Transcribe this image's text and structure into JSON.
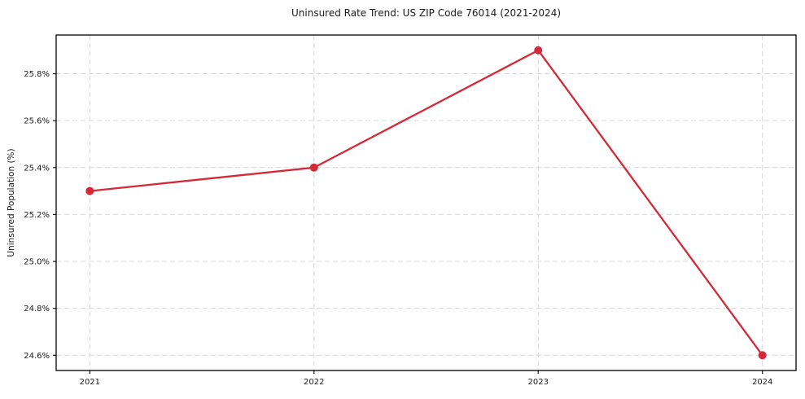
{
  "figure": {
    "title": "Uninsured Rate Trend: US ZIP Code 76014 (2021-2024)",
    "ylabel": "Uninsured Population (%)"
  },
  "chart_data": {
    "type": "line",
    "title": "Uninsured Rate Trend: US ZIP Code 76014 (2021-2024)",
    "xlabel": "",
    "ylabel": "Uninsured Population (%)",
    "x": [
      2021,
      2022,
      2023,
      2024
    ],
    "categories": [
      "2021",
      "2022",
      "2023",
      "2024"
    ],
    "series": [
      {
        "name": "Uninsured rate",
        "values": [
          25.3,
          25.4,
          25.9,
          24.6
        ]
      }
    ],
    "xtick_labels": [
      "2021",
      "2022",
      "2023",
      "2024"
    ],
    "yticks": [
      24.6,
      24.8,
      25.0,
      25.2,
      25.4,
      25.6,
      25.8
    ],
    "ytick_labels": [
      "24.6%",
      "24.8%",
      "25.0%",
      "25.2%",
      "25.4%",
      "25.6%",
      "25.8%"
    ],
    "xlim": [
      2020.85,
      2024.15
    ],
    "ylim": [
      24.535,
      25.965
    ],
    "grid": true,
    "grid_style": "dashed",
    "legend_position": "none",
    "colors": {
      "line": "#d42a38",
      "marker": "#d42a38",
      "grid": "#d6d6d6",
      "spine": "#141414",
      "tick_text": "#1a1a1a",
      "background": "#ffffff"
    }
  }
}
